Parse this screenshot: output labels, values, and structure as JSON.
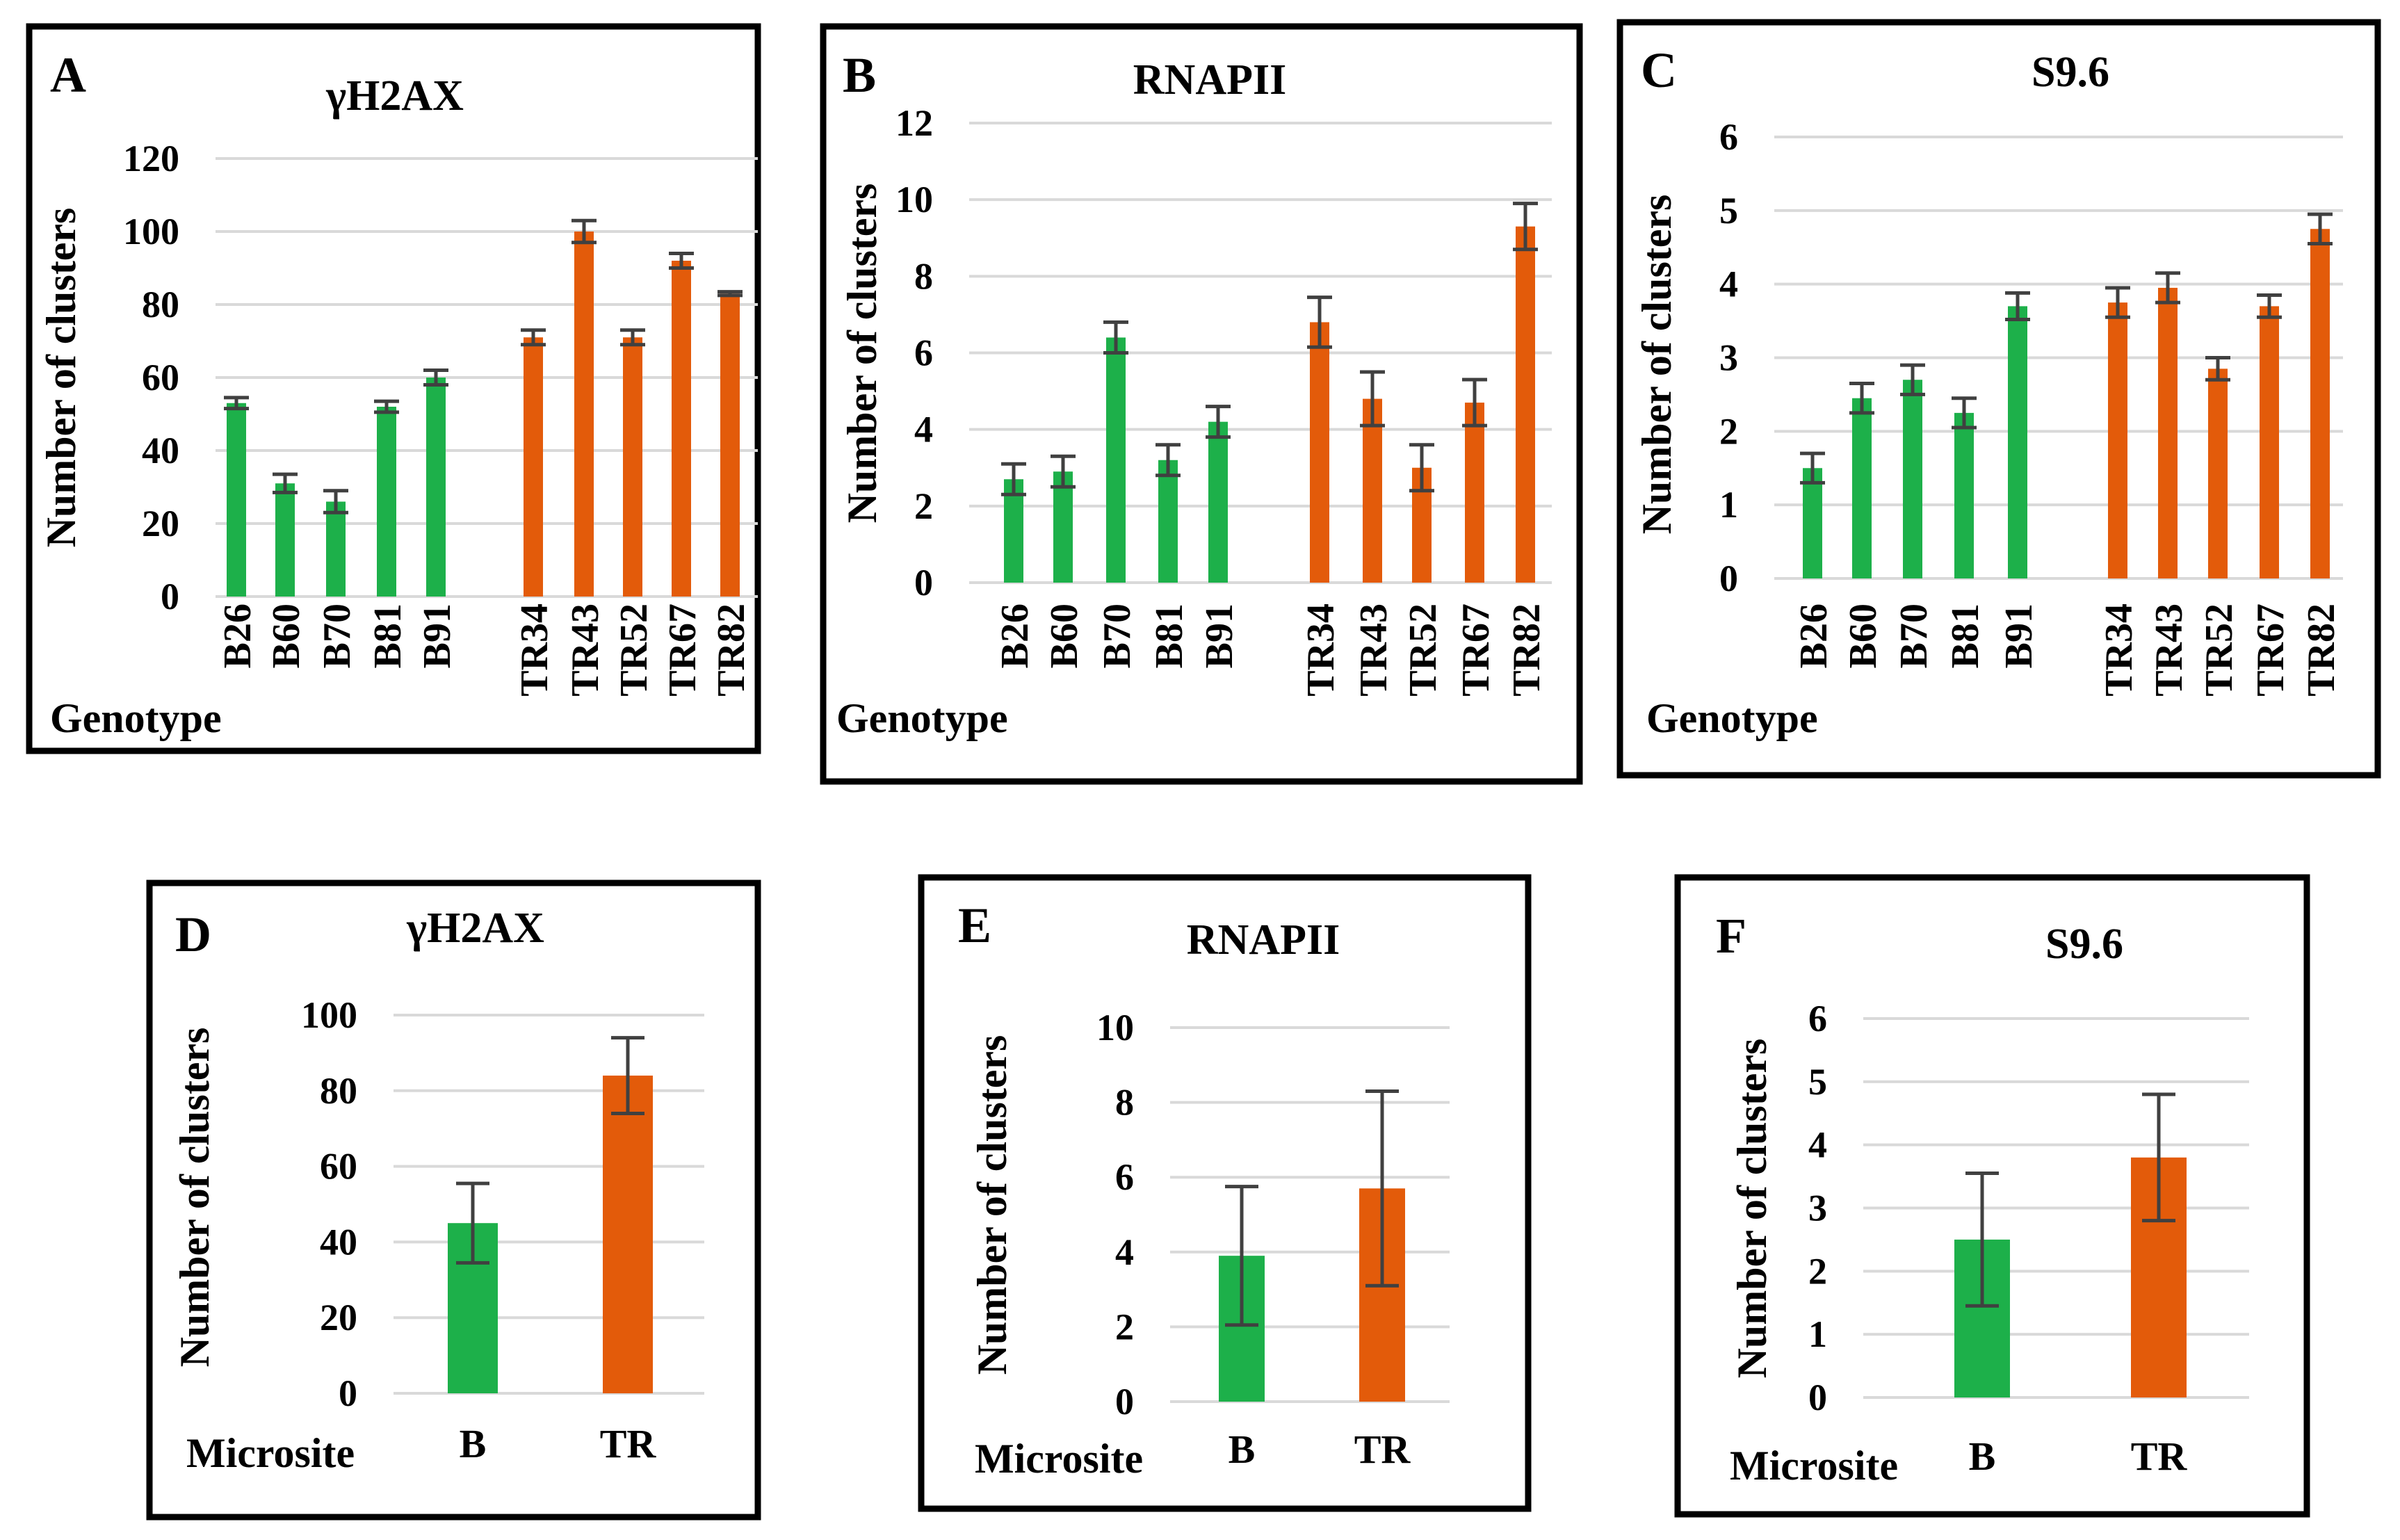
{
  "colors": {
    "B": "#1db04a",
    "TR": "#e35b0a"
  },
  "chart_data": [
    {
      "type": "bar",
      "panel": "A",
      "title": "γH2AX",
      "ylabel": "Number of clusters",
      "xlabel": "Genotype",
      "ylim": [
        0,
        120
      ],
      "yticks": [
        "0",
        "20",
        "40",
        "60",
        "80",
        "100",
        "120"
      ],
      "categories": [
        "B26",
        "B60",
        "B70",
        "B81",
        "B91",
        "TR34",
        "TR43",
        "TR52",
        "TR67",
        "TR82"
      ],
      "groups": [
        "B",
        "B",
        "B",
        "B",
        "B",
        "TR",
        "TR",
        "TR",
        "TR",
        "TR"
      ],
      "values": [
        53,
        31,
        26,
        52,
        60,
        71,
        100,
        71,
        92,
        83
      ],
      "errors": [
        1.5,
        2.5,
        3,
        1.5,
        2,
        2,
        3,
        2,
        2,
        0.5
      ]
    },
    {
      "type": "bar",
      "panel": "B",
      "title": "RNAPII",
      "ylabel": "Number of clusters",
      "xlabel": "Genotype",
      "ylim": [
        0,
        12
      ],
      "yticks": [
        "0",
        "2",
        "4",
        "6",
        "8",
        "10",
        "12"
      ],
      "categories": [
        "B26",
        "B60",
        "B70",
        "B81",
        "B91",
        "TR34",
        "TR43",
        "TR52",
        "TR67",
        "TR82"
      ],
      "groups": [
        "B",
        "B",
        "B",
        "B",
        "B",
        "TR",
        "TR",
        "TR",
        "TR",
        "TR"
      ],
      "values": [
        2.7,
        2.9,
        6.4,
        3.2,
        4.2,
        6.8,
        4.8,
        3.0,
        4.7,
        9.3
      ],
      "errors": [
        0.4,
        0.4,
        0.4,
        0.4,
        0.4,
        0.65,
        0.7,
        0.6,
        0.6,
        0.6
      ]
    },
    {
      "type": "bar",
      "panel": "C",
      "title": "S9.6",
      "ylabel": "Number of clusters",
      "xlabel": "Genotype",
      "ylim": [
        0,
        6
      ],
      "yticks": [
        "0",
        "1",
        "2",
        "3",
        "4",
        "5",
        "6"
      ],
      "categories": [
        "B26",
        "B60",
        "B70",
        "B81",
        "B91",
        "TR34",
        "TR43",
        "TR52",
        "TR67",
        "TR82"
      ],
      "groups": [
        "B",
        "B",
        "B",
        "B",
        "B",
        "TR",
        "TR",
        "TR",
        "TR",
        "TR"
      ],
      "values": [
        1.5,
        2.45,
        2.7,
        2.25,
        3.7,
        3.75,
        3.95,
        2.85,
        3.7,
        4.75
      ],
      "errors": [
        0.2,
        0.2,
        0.2,
        0.2,
        0.18,
        0.2,
        0.2,
        0.15,
        0.15,
        0.2
      ]
    },
    {
      "type": "bar",
      "panel": "D",
      "title": "γH2AX",
      "ylabel": "Number of clusters",
      "xlabel": "Microsite",
      "ylim": [
        0,
        100
      ],
      "yticks": [
        "0",
        "20",
        "40",
        "60",
        "80",
        "100"
      ],
      "categories": [
        "B",
        "TR"
      ],
      "groups": [
        "B",
        "TR"
      ],
      "values": [
        45,
        84
      ],
      "errors": [
        10.5,
        10
      ]
    },
    {
      "type": "bar",
      "panel": "E",
      "title": "RNAPII",
      "ylabel": "Number of clusters",
      "xlabel": "Microsite",
      "ylim": [
        0,
        10
      ],
      "yticks": [
        "0",
        "2",
        "4",
        "6",
        "8",
        "10"
      ],
      "categories": [
        "B",
        "TR"
      ],
      "groups": [
        "B",
        "TR"
      ],
      "values": [
        3.9,
        5.7
      ],
      "errors": [
        1.85,
        2.6
      ]
    },
    {
      "type": "bar",
      "panel": "F",
      "title": "S9.6",
      "ylabel": "Number of clusters",
      "xlabel": "Microsite",
      "ylim": [
        0,
        6
      ],
      "yticks": [
        "0",
        "1",
        "2",
        "3",
        "4",
        "5",
        "6"
      ],
      "categories": [
        "B",
        "TR"
      ],
      "groups": [
        "B",
        "TR"
      ],
      "values": [
        2.5,
        3.8
      ],
      "errors": [
        1.05,
        1.0
      ]
    }
  ]
}
